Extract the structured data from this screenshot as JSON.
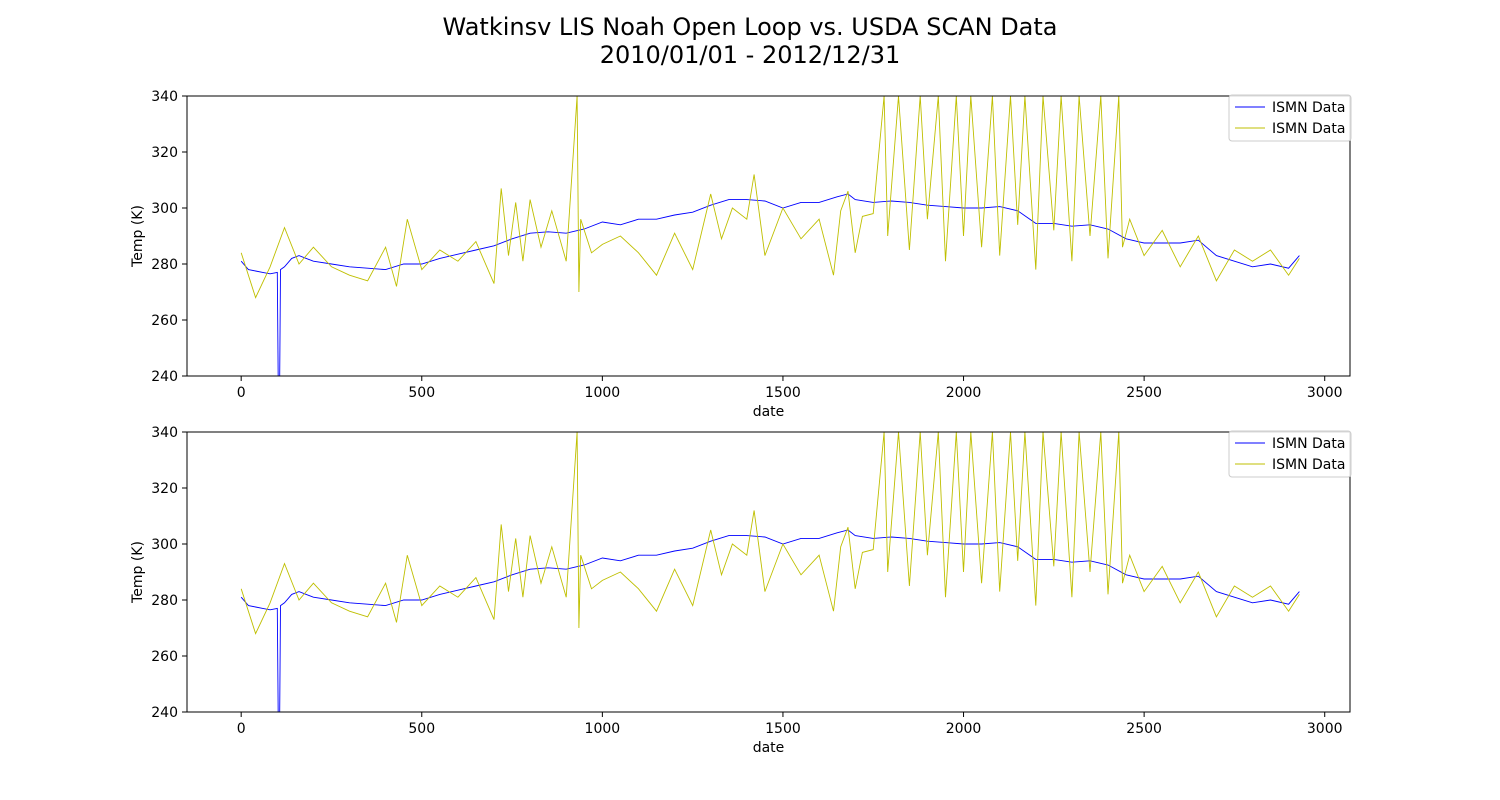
{
  "figure": {
    "title_line1": "Watkinsv LIS Noah Open Loop vs. USDA SCAN Data",
    "title_line2": "2010/01/01 - 2012/12/31"
  },
  "colors": {
    "series_blue": "#0000ff",
    "series_yellow": "#bfbf00"
  },
  "chart_data": [
    {
      "type": "line",
      "xlabel": "date",
      "ylabel": "Temp (K)",
      "xlim": [
        -150,
        3070
      ],
      "ylim": [
        240,
        340
      ],
      "xticks": [
        0,
        500,
        1000,
        1500,
        2000,
        2500,
        3000
      ],
      "yticks": [
        240,
        260,
        280,
        300,
        320,
        340
      ],
      "legend_placement": "top-right",
      "grid": false,
      "series": [
        {
          "name": "ISMN Data",
          "color": "#0000ff",
          "x": [
            0,
            20,
            40,
            60,
            80,
            100,
            103,
            106,
            109,
            120,
            140,
            160,
            180,
            200,
            250,
            300,
            350,
            400,
            450,
            500,
            550,
            600,
            650,
            700,
            750,
            800,
            850,
            900,
            950,
            1000,
            1050,
            1100,
            1150,
            1200,
            1250,
            1300,
            1350,
            1400,
            1450,
            1500,
            1550,
            1600,
            1650,
            1680,
            1700,
            1750,
            1800,
            1850,
            1900,
            1950,
            2000,
            2050,
            2100,
            2150,
            2200,
            2250,
            2300,
            2350,
            2400,
            2450,
            2500,
            2550,
            2600,
            2650,
            2700,
            2750,
            2800,
            2850,
            2900,
            2930
          ],
          "y": [
            281,
            278,
            277.5,
            277,
            276.5,
            277,
            230,
            230,
            278,
            279,
            282,
            283,
            282,
            281,
            280,
            279,
            278.5,
            278,
            280,
            280,
            282,
            283.5,
            285,
            286.5,
            289,
            291,
            291.5,
            291,
            292.5,
            295,
            294,
            296,
            296,
            297.5,
            298.5,
            301,
            303,
            303,
            302.5,
            300,
            302,
            302,
            304,
            305,
            303,
            302,
            302.5,
            302,
            301,
            300.5,
            300,
            300,
            300.5,
            299,
            294.5,
            294.5,
            293.5,
            294,
            292.5,
            289,
            287.5,
            287.5,
            287.5,
            288.5,
            283,
            281,
            279,
            280,
            278.5,
            283
          ]
        },
        {
          "name": "ISMN Data",
          "color": "#bfbf00",
          "x": [
            0,
            40,
            80,
            120,
            160,
            200,
            250,
            300,
            350,
            400,
            430,
            460,
            500,
            550,
            600,
            650,
            700,
            720,
            740,
            760,
            780,
            800,
            830,
            860,
            900,
            930,
            935,
            940,
            970,
            1000,
            1050,
            1100,
            1150,
            1200,
            1250,
            1300,
            1330,
            1360,
            1400,
            1420,
            1450,
            1500,
            1550,
            1600,
            1640,
            1660,
            1680,
            1700,
            1720,
            1750,
            1780,
            1790,
            1820,
            1850,
            1880,
            1900,
            1930,
            1950,
            1980,
            2000,
            2020,
            2050,
            2080,
            2100,
            2130,
            2150,
            2170,
            2200,
            2220,
            2250,
            2270,
            2300,
            2320,
            2350,
            2380,
            2400,
            2430,
            2440,
            2460,
            2500,
            2550,
            2600,
            2650,
            2700,
            2750,
            2800,
            2850,
            2900,
            2930
          ],
          "y": [
            284,
            268,
            279,
            293,
            280,
            286,
            279,
            276,
            274,
            286,
            272,
            296,
            278,
            285,
            281,
            288,
            273,
            307,
            283,
            302,
            281,
            303,
            286,
            299,
            281,
            340,
            270,
            296,
            284,
            287,
            290,
            284,
            276,
            291,
            278,
            305,
            289,
            300,
            296,
            312,
            283,
            300,
            289,
            296,
            276,
            299,
            306,
            284,
            297,
            298,
            340,
            290,
            340,
            285,
            340,
            296,
            340,
            281,
            340,
            290,
            340,
            286,
            340,
            283,
            340,
            294,
            340,
            278,
            340,
            292,
            340,
            281,
            340,
            290,
            340,
            282,
            340,
            286,
            296,
            283,
            292,
            279,
            290,
            274,
            285,
            281,
            285,
            276,
            282
          ]
        }
      ]
    },
    {
      "type": "line",
      "xlabel": "date",
      "ylabel": "Temp (K)",
      "xlim": [
        -150,
        3070
      ],
      "ylim": [
        240,
        340
      ],
      "xticks": [
        0,
        500,
        1000,
        1500,
        2000,
        2500,
        3000
      ],
      "yticks": [
        240,
        260,
        280,
        300,
        320,
        340
      ],
      "legend_placement": "top-right",
      "grid": false,
      "series": [
        {
          "name": "ISMN Data",
          "color": "#0000ff",
          "x": [
            0,
            20,
            40,
            60,
            80,
            100,
            103,
            106,
            109,
            120,
            140,
            160,
            180,
            200,
            250,
            300,
            350,
            400,
            450,
            500,
            550,
            600,
            650,
            700,
            750,
            800,
            850,
            900,
            950,
            1000,
            1050,
            1100,
            1150,
            1200,
            1250,
            1300,
            1350,
            1400,
            1450,
            1500,
            1550,
            1600,
            1650,
            1680,
            1700,
            1750,
            1800,
            1850,
            1900,
            1950,
            2000,
            2050,
            2100,
            2150,
            2200,
            2250,
            2300,
            2350,
            2400,
            2450,
            2500,
            2550,
            2600,
            2650,
            2700,
            2750,
            2800,
            2850,
            2900,
            2930
          ],
          "y": [
            281,
            278,
            277.5,
            277,
            276.5,
            277,
            230,
            230,
            278,
            279,
            282,
            283,
            282,
            281,
            280,
            279,
            278.5,
            278,
            280,
            280,
            282,
            283.5,
            285,
            286.5,
            289,
            291,
            291.5,
            291,
            292.5,
            295,
            294,
            296,
            296,
            297.5,
            298.5,
            301,
            303,
            303,
            302.5,
            300,
            302,
            302,
            304,
            305,
            303,
            302,
            302.5,
            302,
            301,
            300.5,
            300,
            300,
            300.5,
            299,
            294.5,
            294.5,
            293.5,
            294,
            292.5,
            289,
            287.5,
            287.5,
            287.5,
            288.5,
            283,
            281,
            279,
            280,
            278.5,
            283
          ]
        },
        {
          "name": "ISMN Data",
          "color": "#bfbf00",
          "x": [
            0,
            40,
            80,
            120,
            160,
            200,
            250,
            300,
            350,
            400,
            430,
            460,
            500,
            550,
            600,
            650,
            700,
            720,
            740,
            760,
            780,
            800,
            830,
            860,
            900,
            930,
            935,
            940,
            970,
            1000,
            1050,
            1100,
            1150,
            1200,
            1250,
            1300,
            1330,
            1360,
            1400,
            1420,
            1450,
            1500,
            1550,
            1600,
            1640,
            1660,
            1680,
            1700,
            1720,
            1750,
            1780,
            1790,
            1820,
            1850,
            1880,
            1900,
            1930,
            1950,
            1980,
            2000,
            2020,
            2050,
            2080,
            2100,
            2130,
            2150,
            2170,
            2200,
            2220,
            2250,
            2270,
            2300,
            2320,
            2350,
            2380,
            2400,
            2430,
            2440,
            2460,
            2500,
            2550,
            2600,
            2650,
            2700,
            2750,
            2800,
            2850,
            2900,
            2930
          ],
          "y": [
            284,
            268,
            279,
            293,
            280,
            286,
            279,
            276,
            274,
            286,
            272,
            296,
            278,
            285,
            281,
            288,
            273,
            307,
            283,
            302,
            281,
            303,
            286,
            299,
            281,
            340,
            270,
            296,
            284,
            287,
            290,
            284,
            276,
            291,
            278,
            305,
            289,
            300,
            296,
            312,
            283,
            300,
            289,
            296,
            276,
            299,
            306,
            284,
            297,
            298,
            340,
            290,
            340,
            285,
            340,
            296,
            340,
            281,
            340,
            290,
            340,
            286,
            340,
            283,
            340,
            294,
            340,
            278,
            340,
            292,
            340,
            281,
            340,
            290,
            340,
            282,
            340,
            286,
            296,
            283,
            292,
            279,
            290,
            274,
            285,
            281,
            285,
            276,
            282
          ]
        }
      ]
    }
  ]
}
